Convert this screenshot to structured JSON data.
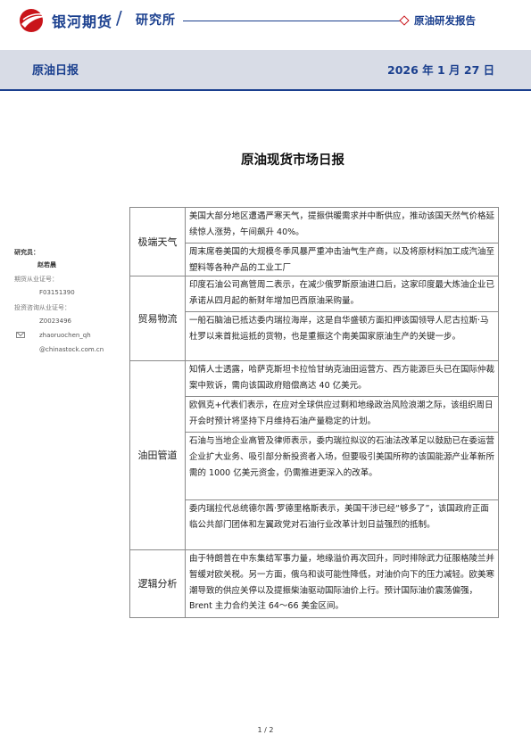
{
  "header": {
    "brand": "银河期货",
    "slash": "/",
    "sub": "研究所",
    "report_type": "原油研发报告",
    "brand_color": "#1a3f8e",
    "accent_color": "#c9141a"
  },
  "title_band": {
    "title": "原油日报",
    "date": "2026 年 1 月 27 日"
  },
  "doc_title": "原油现货市场日报",
  "sidebar": {
    "role_label": "研究员：",
    "name": "赵若晨",
    "license_label": "期货从业证号：",
    "license_value": "F03151390",
    "advisory_label": "投资咨询从业证号：",
    "advisory_value": "Z0023496",
    "email_user": "zhaoruochen_qh",
    "email_domain": "@chinastock.com.cn"
  },
  "table": {
    "sections": [
      {
        "category": "极端天气",
        "items": [
          "美国大部分地区遭遇严寒天气，提振供暖需求并中断供应，推动该国天然气价格延续惊人涨势，午间飙升 40%。",
          "周末席卷美国的大规模冬季风暴严重冲击油气生产商，以及将原材料加工成汽油至塑料等各种产品的工业工厂"
        ]
      },
      {
        "category": "贸易物流",
        "items": [
          "印度石油公司高管周二表示，在减少俄罗斯原油进口后，这家印度最大炼油企业已承诺从四月起的新财年增加巴西原油采购量。",
          "一船石脑油已抵达委内瑞拉海岸，这是自华盛顿方面扣押该国领导人尼古拉斯·马杜罗以来首批运抵的货物，也是重振这个南美国家原油生产的关键一步。"
        ]
      },
      {
        "category": "油田管道",
        "items": [
          "知情人士透露，哈萨克斯坦卡拉恰甘纳克油田运营方、西方能源巨头已在国际仲裁案中败诉，需向该国政府赔偿高达 40 亿美元。",
          "欧佩克+代表们表示，在应对全球供应过剩和地缘政治风险浪潮之际，该组织周日开会时预计将坚持下月维持石油产量稳定的计划。",
          "石油与当地企业高管及律师表示，委内瑞拉拟议的石油法改革足以鼓励已在委运营企业扩大业务、吸引部分新投资者入场，但要吸引美国所称的该国能源产业革新所需的 1000 亿美元资金，仍需推进更深入的改革。",
          "委内瑞拉代总统德尔茜·罗德里格斯表示，美国干涉已经“够多了”，该国政府正面临公共部门团体和左翼政党对石油行业改革计划日益强烈的抵制。"
        ]
      },
      {
        "category": "逻辑分析",
        "items": [
          "由于特朗普在中东集结军事力量，地缘溢价再次回升，同时排除武力征服格陵兰并暂缓对欧关税。另一方面，俄乌和谈可能性降低，对油价向下的压力减轻。欧美寒潮导致的供应关停以及提振柴油驱动国际油价上行。预计国际油价震荡偏强，Brent 主力合约关注 64～66 美金区间。"
        ]
      }
    ]
  },
  "footer": {
    "page": "1 / 2"
  }
}
